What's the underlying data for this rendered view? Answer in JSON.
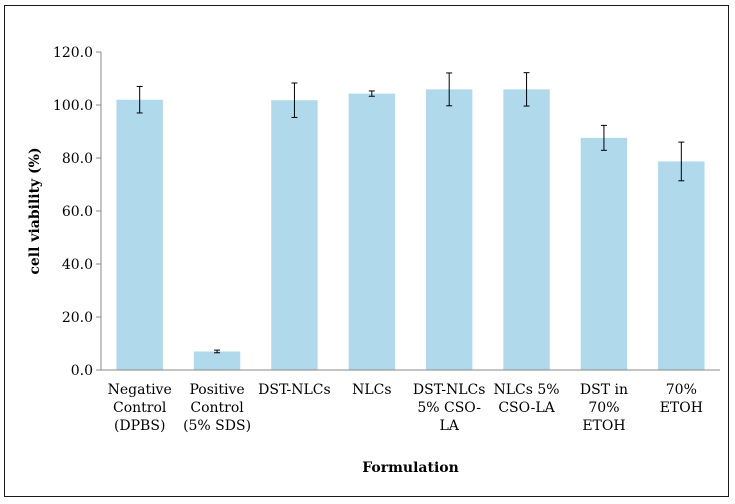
{
  "chart_data": {
    "type": "bar",
    "categories": [
      [
        "Negative",
        "Control",
        "(DPBS)"
      ],
      [
        "Positive",
        "Control",
        "(5% SDS)"
      ],
      [
        "DST-NLCs"
      ],
      [
        "NLCs"
      ],
      [
        "DST-NLCs",
        "5% CSO-",
        "LA"
      ],
      [
        "NLCs 5%",
        "CSO-LA"
      ],
      [
        "DST in",
        "70%",
        "ETOH"
      ],
      [
        "70%",
        "ETOH"
      ]
    ],
    "values": [
      102.0,
      7.0,
      101.8,
      104.3,
      105.9,
      105.9,
      87.6,
      78.7
    ],
    "errors": [
      5.0,
      0.5,
      6.5,
      1.0,
      6.2,
      6.3,
      4.7,
      7.3
    ],
    "xlabel": "Formulation",
    "ylabel": "cell viability (%)",
    "ylim": [
      0,
      120
    ],
    "yticks": [
      "0.0",
      "20.0",
      "40.0",
      "60.0",
      "80.0",
      "100.0",
      "120.0"
    ],
    "grid": false,
    "legend": "none",
    "colors": {
      "bar": "#b0d9ec",
      "error_bar": "#000000",
      "axis": "#888888",
      "text": "#000000"
    }
  }
}
